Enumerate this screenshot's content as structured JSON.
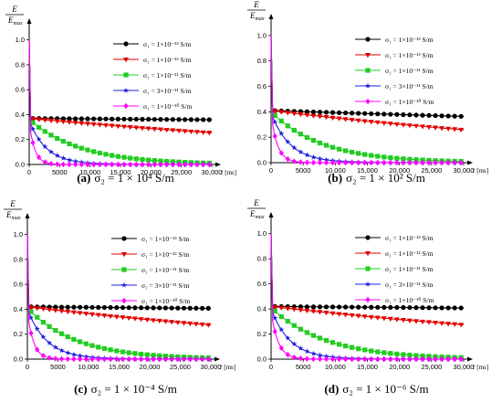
{
  "chart_data": [
    {
      "type": "line",
      "caption_label": "(a)",
      "caption_text": "σ₂ = 1 × 10⁴ S/m",
      "ylabel_num": "E",
      "ylabel_den": "E_max",
      "xlabel": "t",
      "xunit": "[ms]",
      "xlim": [
        0,
        30000
      ],
      "ylim": [
        0,
        1.1
      ],
      "xticks": [
        0,
        5000,
        10000,
        15000,
        20000,
        25000,
        30000
      ],
      "xtick_labels": [
        "0",
        "5000",
        "10,000",
        "15,000",
        "20,000",
        "25,000",
        "30,000"
      ],
      "yticks": [
        0,
        0.2,
        0.4,
        0.6,
        0.8,
        1.0
      ],
      "ytick_labels": [
        "0.0",
        "0.2",
        "0.4",
        "0.6",
        "0.8",
        "1.0"
      ],
      "legend_position": "top-right",
      "peak": 1.0,
      "series": [
        {
          "name": "σ₁ = 1×10⁻¹³ S/m",
          "color": "#000000",
          "marker": "circle",
          "plateau": 0.37,
          "tau": 1000000
        },
        {
          "name": "σ₁ = 1×10⁻¹² S/m",
          "color": "#e00000",
          "marker": "triangle-down",
          "plateau": 0.37,
          "tau": 80000
        },
        {
          "name": "σ₁ = 1×10⁻¹¹ S/m",
          "color": "#22cc22",
          "marker": "square",
          "plateau": 0.36,
          "tau": 8500
        },
        {
          "name": "σ₁ = 3×10⁻¹¹ S/m",
          "color": "#2020e0",
          "marker": "star",
          "plateau": 0.35,
          "tau": 2900
        },
        {
          "name": "σ₁ = 1×10⁻¹⁰ S/m",
          "color": "#ff00ff",
          "marker": "diamond",
          "plateau": 0.34,
          "tau": 900
        }
      ]
    },
    {
      "type": "line",
      "caption_label": "(b)",
      "caption_text": "σ₂ = 1 × 10² S/m",
      "ylabel_num": "E",
      "ylabel_den": "E_max",
      "xlabel": "t",
      "xunit": "[ms]",
      "xlim": [
        0,
        30000
      ],
      "ylim": [
        0,
        1.1
      ],
      "xticks": [
        0,
        5000,
        10000,
        15000,
        20000,
        25000,
        30000
      ],
      "xtick_labels": [
        "0",
        "5000",
        "10,000",
        "15,000",
        "20,000",
        "25,000",
        "30,000"
      ],
      "yticks": [
        0,
        0.2,
        0.4,
        0.6,
        0.8,
        1.0
      ],
      "ytick_labels": [
        "0.0",
        "0.2",
        "0.4",
        "0.6",
        "0.8",
        "1.0"
      ],
      "legend_position": "top-right",
      "peak": 1.0,
      "series": [
        {
          "name": "σ₁ = 1×10⁻¹³ S/m",
          "color": "#000000",
          "marker": "circle",
          "plateau": 0.41,
          "tau": 250000
        },
        {
          "name": "σ₁ = 1×10⁻¹² S/m",
          "color": "#e00000",
          "marker": "triangle-down",
          "plateau": 0.41,
          "tau": 65000
        },
        {
          "name": "σ₁ = 1×10⁻¹¹ S/m",
          "color": "#22cc22",
          "marker": "square",
          "plateau": 0.4,
          "tau": 8000
        },
        {
          "name": "σ₁ = 3×10⁻¹¹ S/m",
          "color": "#2020e0",
          "marker": "star",
          "plateau": 0.39,
          "tau": 3000
        },
        {
          "name": "σ₁ = 1×10⁻¹⁰ S/m",
          "color": "#ff00ff",
          "marker": "diamond",
          "plateau": 0.38,
          "tau": 1000
        }
      ]
    },
    {
      "type": "line",
      "caption_label": "(c)",
      "caption_text": "σ₂ = 1 × 10⁻⁴ S/m",
      "ylabel_num": "E",
      "ylabel_den": "E_max",
      "xlabel": "t",
      "xunit": "[ms]",
      "xlim": [
        0,
        30000
      ],
      "ylim": [
        0,
        1.1
      ],
      "xticks": [
        0,
        5000,
        10000,
        15000,
        20000,
        25000,
        30000
      ],
      "xtick_labels": [
        "0",
        "5000",
        "10,000",
        "15,000",
        "20,000",
        "25,000",
        "30,000"
      ],
      "yticks": [
        0,
        0.2,
        0.4,
        0.6,
        0.8,
        1.0
      ],
      "ytick_labels": [
        "0.0",
        "0.2",
        "0.4",
        "0.6",
        "0.8",
        "1.0"
      ],
      "legend_position": "top-right",
      "peak": 1.0,
      "series": [
        {
          "name": "σ₁ = 1×10⁻¹³ S/m",
          "color": "#000000",
          "marker": "circle",
          "plateau": 0.42,
          "tau": 1000000
        },
        {
          "name": "σ₁ = 1×10⁻¹² S/m",
          "color": "#e00000",
          "marker": "triangle-down",
          "plateau": 0.42,
          "tau": 70000
        },
        {
          "name": "σ₁ = 1×10⁻¹¹ S/m",
          "color": "#22cc22",
          "marker": "square",
          "plateau": 0.41,
          "tau": 8000
        },
        {
          "name": "σ₁ = 3×10⁻¹¹ S/m",
          "color": "#2020e0",
          "marker": "star",
          "plateau": 0.4,
          "tau": 3200
        },
        {
          "name": "σ₁ = 1×10⁻¹⁰ S/m",
          "color": "#ff00ff",
          "marker": "diamond",
          "plateau": 0.38,
          "tau": 1000
        }
      ]
    },
    {
      "type": "line",
      "caption_label": "(d)",
      "caption_text": "σ₂ = 1 × 10⁻⁶ S/m",
      "ylabel_num": "E",
      "ylabel_den": "E_max",
      "xlabel": "t",
      "xunit": "[ms]",
      "xlim": [
        0,
        30000
      ],
      "ylim": [
        0,
        1.1
      ],
      "xticks": [
        0,
        5000,
        10000,
        15000,
        20000,
        25000,
        30000
      ],
      "xtick_labels": [
        "0",
        "5000",
        "10,000",
        "15,000",
        "20,000",
        "25,000",
        "30,000"
      ],
      "yticks": [
        0,
        0.2,
        0.4,
        0.6,
        0.8,
        1.0
      ],
      "ytick_labels": [
        "0.0",
        "0.2",
        "0.4",
        "0.6",
        "0.8",
        "1.0"
      ],
      "legend_position": "top-right",
      "peak": 1.0,
      "series": [
        {
          "name": "σ₁ = 1×10⁻¹³ S/m",
          "color": "#000000",
          "marker": "circle",
          "plateau": 0.42,
          "tau": 1000000
        },
        {
          "name": "σ₁ = 1×10⁻¹² S/m",
          "color": "#e00000",
          "marker": "triangle-down",
          "plateau": 0.42,
          "tau": 70000
        },
        {
          "name": "σ₁ = 1×10⁻¹¹ S/m",
          "color": "#22cc22",
          "marker": "square",
          "plateau": 0.41,
          "tau": 8500
        },
        {
          "name": "σ₁ = 3×10⁻¹¹ S/m",
          "color": "#2020e0",
          "marker": "star",
          "plateau": 0.4,
          "tau": 3000
        },
        {
          "name": "σ₁ = 1×10⁻¹⁰ S/m",
          "color": "#ff00ff",
          "marker": "diamond",
          "plateau": 0.38,
          "tau": 1100
        }
      ]
    }
  ]
}
